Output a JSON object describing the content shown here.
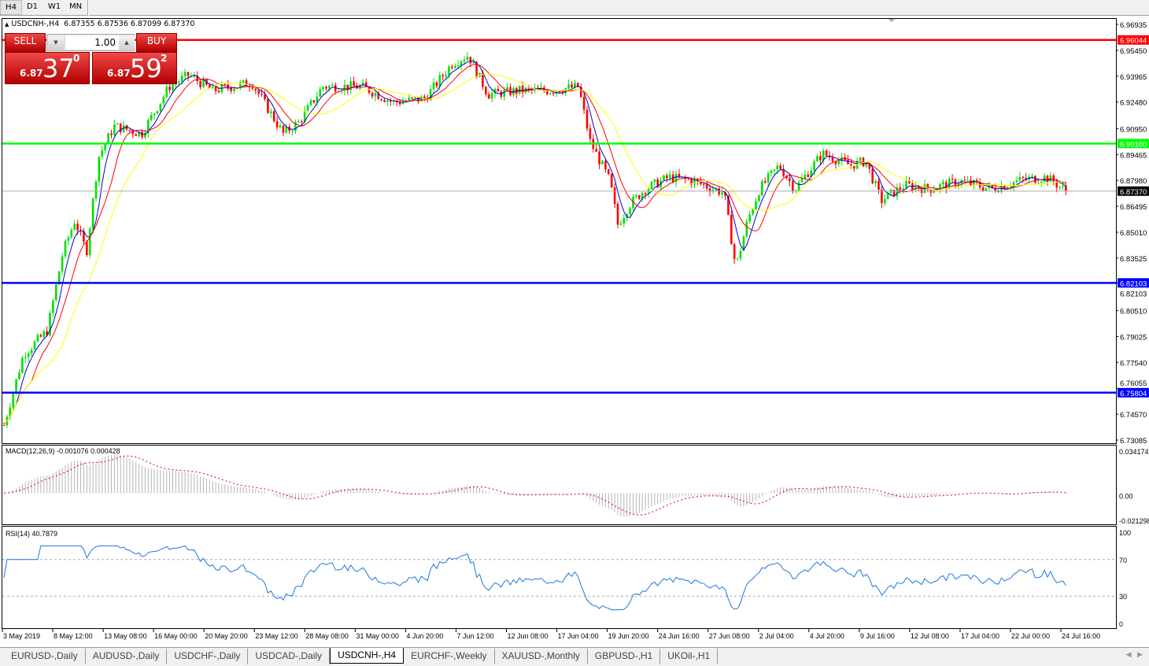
{
  "toolbar": {
    "timeframes": [
      "H4",
      "D1",
      "W1",
      "MN"
    ],
    "active": "H4"
  },
  "chart": {
    "header": "USDCNH-,H4  6.87355 6.87536 6.87099 6.87370",
    "symbol": "USDCNH-",
    "timeframe": "H4",
    "ohlc": {
      "open": 6.87355,
      "high": 6.87536,
      "low": 6.87099,
      "close": 6.8737
    },
    "price_axis": [
      "6.96935",
      "6.95450",
      "6.93965",
      "6.92480",
      "6.90950",
      "6.89465",
      "6.87980",
      "6.86495",
      "6.85010",
      "6.83525",
      "6.82103",
      "6.80510",
      "6.79025",
      "6.77540",
      "6.76055",
      "6.74570",
      "6.73085"
    ],
    "price_range": [
      6.73085,
      6.96935
    ],
    "horizontal_lines": [
      {
        "label": "6.96044",
        "price": 6.96044,
        "color": "#ff0000"
      },
      {
        "label": "6.90100",
        "price": 6.901,
        "color": "#00ff00"
      },
      {
        "label": "6.82103",
        "price": 6.82103,
        "color": "#0000ff"
      },
      {
        "label": "6.75804",
        "price": 6.75804,
        "color": "#0000ff"
      }
    ],
    "current_price": {
      "label": "6.87370",
      "price": 6.8737
    },
    "close_keypoints": [
      6.7394,
      6.7801,
      6.7936,
      6.8388,
      6.8569,
      6.8388,
      6.893,
      6.9111,
      6.9066,
      6.9337,
      6.9404,
      6.9314,
      6.9359,
      6.9066,
      6.9133,
      6.9337,
      6.9337,
      6.9246,
      6.9269,
      6.9472,
      6.9517,
      6.9291,
      6.9314,
      6.9314,
      6.9337,
      6.902,
      6.8795,
      6.8546,
      6.8659,
      6.8749,
      6.8817,
      6.8795,
      6.8727,
      6.8298,
      6.8569,
      6.8749,
      6.8885,
      6.8749,
      6.8953,
      6.8885,
      6.8908,
      6.8682,
      6.8772,
      6.8749,
      6.8795,
      6.8749,
      6.8804,
      6.8817,
      6.8737
    ],
    "colors": {
      "bull": "#00e000",
      "bear": "#ff0000",
      "ma_fast": "#0000cc",
      "ma_mid": "#ff0000",
      "ma_slow": "#ffff00"
    },
    "time_axis": [
      "3 May 2019",
      "8 May 12:00",
      "13 May 08:00",
      "16 May 00:00",
      "20 May 20:00",
      "23 May 12:00",
      "28 May 08:00",
      "31 May 00:00",
      "4 Jun 20:00",
      "7 Jun 12:00",
      "12 Jun 08:00",
      "17 Jun 04:00",
      "19 Jun 20:00",
      "24 Jun 16:00",
      "27 Jun 08:00",
      "2 Jul 04:00",
      "4 Jul 20:00",
      "9 Jul 16:00",
      "12 Jul 08:00",
      "17 Jul 04:00",
      "22 Jul 00:00",
      "24 Jul 16:00"
    ]
  },
  "macd": {
    "label": "MACD(12,26,9) -0.001076 0.000428",
    "axis": [
      "0.034174",
      "0.00",
      "-0.021298"
    ],
    "range": [
      -0.021298,
      0.034174
    ]
  },
  "rsi": {
    "label": "RSI(14) 40.7879",
    "axis": [
      "100",
      "70",
      "30",
      "0"
    ],
    "levels": [
      70,
      30
    ],
    "value": 40.7879
  },
  "trade": {
    "sell_label": "SELL",
    "buy_label": "BUY",
    "lot": "1.00",
    "sell": {
      "prefix": "6.87",
      "big": "37",
      "sup": "0"
    },
    "buy": {
      "prefix": "6.87",
      "big": "59",
      "sup": "2"
    }
  },
  "tabs": [
    "EURUSD-,Daily",
    "AUDUSD-,Daily",
    "USDCHF-,Daily",
    "USDCAD-,Daily",
    "USDCNH-,H4",
    "EURCHF-,Weekly",
    "XAUUSD-,Monthly",
    "GBPUSD-,H1",
    "UKOil-,H1"
  ],
  "active_tab": "USDCNH-,H4"
}
